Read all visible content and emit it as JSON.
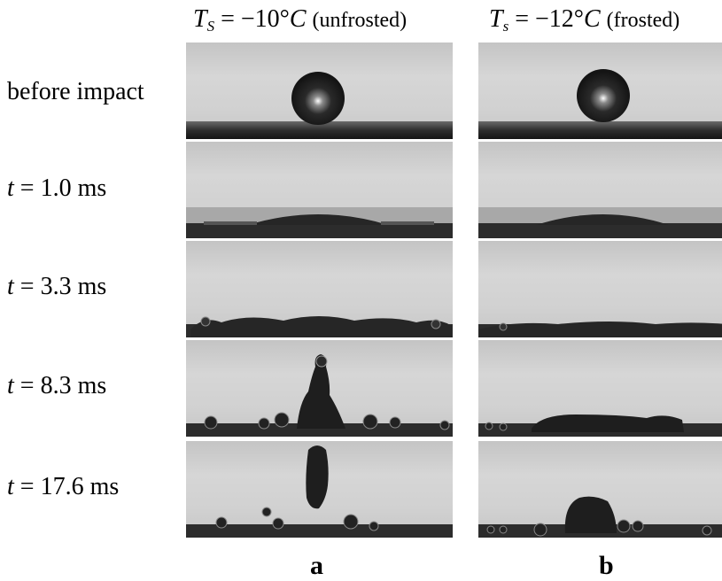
{
  "columns": [
    {
      "prefix": "T",
      "subscript": "S",
      "value": "= −10°",
      "unit": "C",
      "condition": "(unfrosted)",
      "letter": "a"
    },
    {
      "prefix": "T",
      "subscript": "s",
      "value": "= −12°",
      "unit": "C",
      "condition": "(frosted)",
      "letter": "b"
    }
  ],
  "rows": [
    {
      "label": "before impact",
      "time_var": "",
      "time_value": ""
    },
    {
      "label": "",
      "time_var": "t",
      "time_value": "= 1.0 ms"
    },
    {
      "label": "",
      "time_var": "t",
      "time_value": "= 3.3 ms"
    },
    {
      "label": "",
      "time_var": "t",
      "time_value": "= 8.3 ms"
    },
    {
      "label": "",
      "time_var": "t",
      "time_value": "= 17.6 ms"
    }
  ],
  "colors": {
    "background": "#ffffff",
    "frame_gray": "#cfcfcf",
    "surface_dark": "#2a2a2a",
    "drop": "#1c1c1c"
  }
}
